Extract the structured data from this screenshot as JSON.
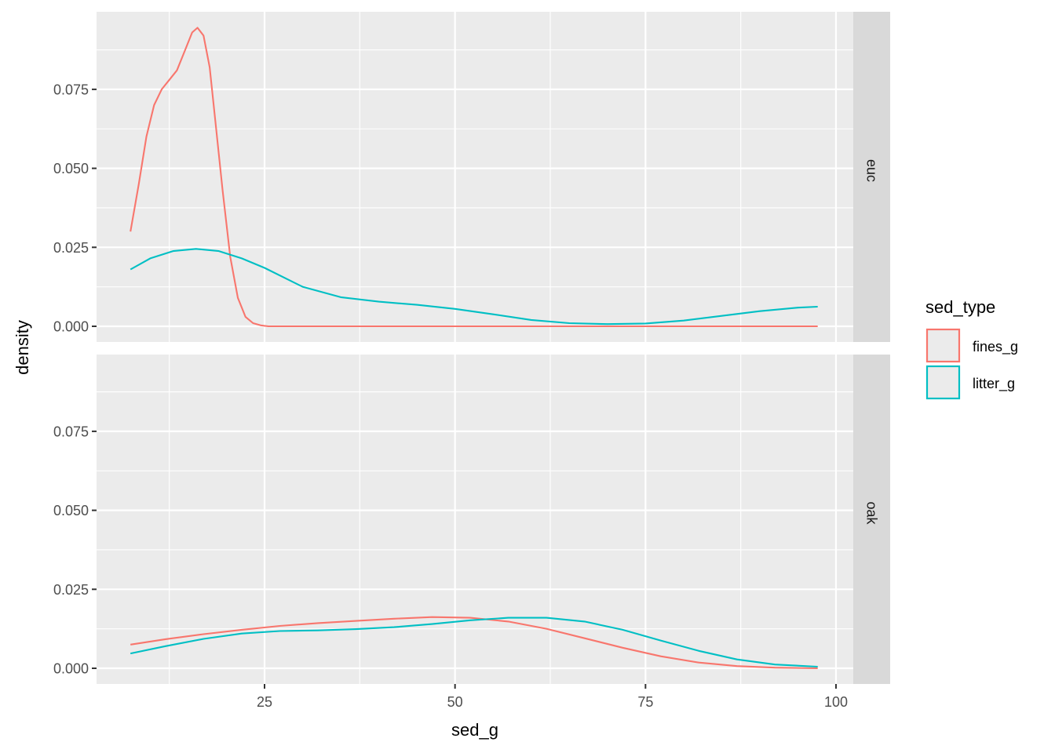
{
  "chart_data": {
    "type": "line",
    "subtype": "density (faceted)",
    "title": "",
    "xlabel": "sed_g",
    "ylabel": "density",
    "xlim": [
      2.6,
      102.5
    ],
    "ylim": [
      -0.0047,
      0.0996
    ],
    "x_ticks": [
      25,
      50,
      75,
      100
    ],
    "y_ticks": [
      0.0,
      0.025,
      0.05,
      0.075
    ],
    "x_tick_labels": [
      "25",
      "50",
      "75",
      "100"
    ],
    "y_tick_labels": [
      "0.000",
      "0.025",
      "0.050",
      "0.075"
    ],
    "grid": true,
    "legend": {
      "title": "sed_type",
      "position": "right",
      "entries": [
        {
          "label": "fines_g",
          "color": "#F8766D"
        },
        {
          "label": "litter_g",
          "color": "#00BFC4"
        }
      ]
    },
    "facets": [
      {
        "label": "euc",
        "series": [
          {
            "name": "fines_g",
            "color": "#F8766D",
            "x": [
              7.4,
              8.5,
              9.5,
              10.5,
              11.5,
              12.5,
              13.5,
              14.5,
              15.5,
              16.2,
              17.0,
              17.8,
              18.5,
              19.5,
              20.5,
              21.5,
              22.5,
              23.5,
              24.5,
              25.5,
              27,
              30,
              40,
              50,
              60,
              70,
              80,
              90,
              97.6
            ],
            "values": [
              0.03,
              0.045,
              0.06,
              0.07,
              0.075,
              0.078,
              0.081,
              0.087,
              0.093,
              0.0945,
              0.092,
              0.082,
              0.066,
              0.043,
              0.022,
              0.009,
              0.003,
              0.001,
              0.0003,
              0.0,
              0.0,
              0.0,
              0.0,
              0.0,
              0.0,
              0.0,
              0.0,
              0.0,
              0.0
            ]
          },
          {
            "name": "litter_g",
            "color": "#00BFC4",
            "x": [
              7.4,
              10,
              13,
              16,
              19,
              22,
              25,
              30,
              35,
              40,
              45,
              50,
              55,
              60,
              65,
              70,
              75,
              80,
              85,
              90,
              95,
              97.6
            ],
            "values": [
              0.018,
              0.0215,
              0.0238,
              0.0245,
              0.0238,
              0.0215,
              0.0185,
              0.0125,
              0.0092,
              0.0078,
              0.0068,
              0.0055,
              0.0038,
              0.002,
              0.001,
              0.0007,
              0.0009,
              0.0018,
              0.0033,
              0.0048,
              0.0059,
              0.0062
            ]
          }
        ]
      },
      {
        "label": "oak",
        "series": [
          {
            "name": "fines_g",
            "color": "#F8766D",
            "x": [
              7.4,
              12,
              17,
              22,
              27,
              32,
              37,
              42,
              47,
              52,
              57,
              62,
              67,
              72,
              77,
              82,
              87,
              92,
              97.6
            ],
            "values": [
              0.0075,
              0.0092,
              0.0108,
              0.0122,
              0.0134,
              0.0143,
              0.015,
              0.0157,
              0.0162,
              0.016,
              0.0148,
              0.0125,
              0.0095,
              0.0065,
              0.0038,
              0.0018,
              0.0007,
              0.0002,
              0.0
            ]
          },
          {
            "name": "litter_g",
            "color": "#00BFC4",
            "x": [
              7.4,
              12,
              17,
              22,
              27,
              32,
              37,
              42,
              47,
              52,
              57,
              62,
              67,
              72,
              77,
              82,
              87,
              92,
              97.6
            ],
            "values": [
              0.0047,
              0.007,
              0.0093,
              0.011,
              0.0118,
              0.012,
              0.0124,
              0.013,
              0.014,
              0.0152,
              0.016,
              0.016,
              0.0148,
              0.0122,
              0.0088,
              0.0055,
              0.0028,
              0.0012,
              0.0005
            ]
          }
        ]
      }
    ]
  },
  "colors": {
    "panel_background": "#EBEBEB",
    "strip_background": "#D9D9D9",
    "grid_major": "#FFFFFF",
    "tick_text": "#4D4D4D",
    "fines_g": "#F8766D",
    "litter_g": "#00BFC4"
  }
}
